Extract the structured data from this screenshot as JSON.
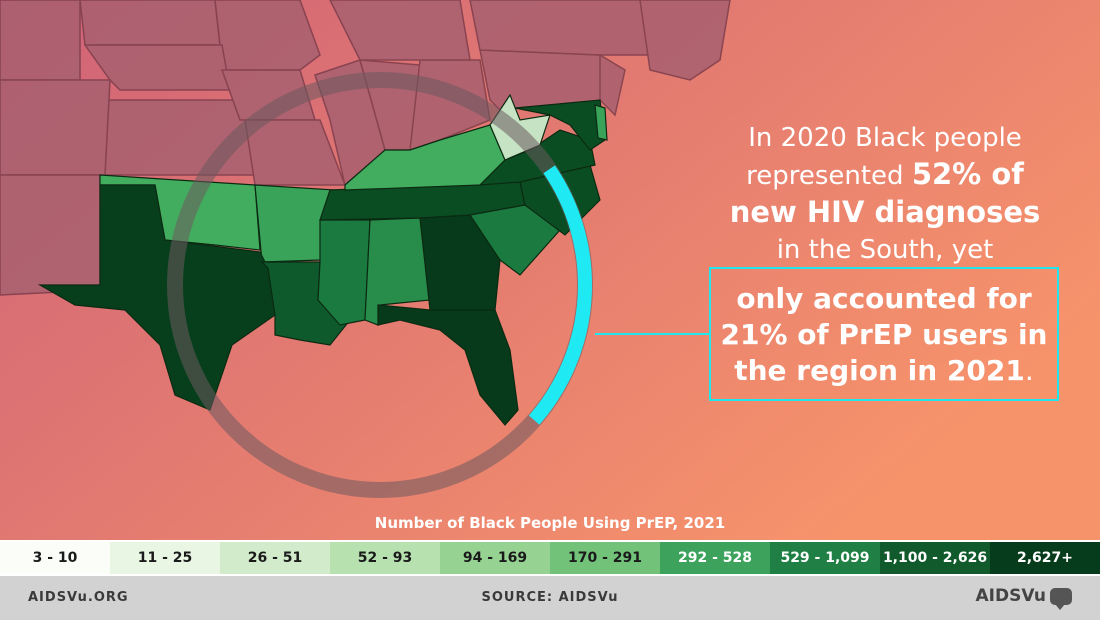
{
  "colors": {
    "bg_left": "#cf6277",
    "bg_right": "#f7936b",
    "accent_cyan": "#1fe9f2",
    "ring": "#6b5a5e",
    "state_dark": "#043a18",
    "state_mid": "#1b6b3a",
    "state_light": "#3fae5e",
    "state_pale": "#c6e3c3",
    "nonsouth": "#a86070"
  },
  "headline": {
    "line1": "In 2020 Black people",
    "line2_prefix": "represented ",
    "line2_bold": "52% of",
    "line3_bold": "new HIV diagnoses",
    "line4": "in the South, yet"
  },
  "callout": {
    "line1": "only accounted for",
    "line2": "21% of PrEP users in",
    "line3": "the region in 2021",
    "period": "."
  },
  "legend": {
    "title": "Number of Black People Using PrEP, 2021",
    "bins": [
      {
        "label": "3 - 10",
        "color": "#fafdf8",
        "text": "#1a1a1a"
      },
      {
        "label": "11 - 25",
        "color": "#e9f6e4",
        "text": "#1a1a1a"
      },
      {
        "label": "26 - 51",
        "color": "#d1ebcb",
        "text": "#1a1a1a"
      },
      {
        "label": "52 - 93",
        "color": "#b7e2b0",
        "text": "#1a1a1a"
      },
      {
        "label": "94 - 169",
        "color": "#96d393",
        "text": "#1a1a1a"
      },
      {
        "label": "170 - 291",
        "color": "#72c27a",
        "text": "#1a1a1a"
      },
      {
        "label": "292 - 528",
        "color": "#3da35c",
        "text": "#ffffff"
      },
      {
        "label": "529 - 1,099",
        "color": "#1f7f44",
        "text": "#ffffff"
      },
      {
        "label": "1,100 - 2,626",
        "color": "#115a2c",
        "text": "#ffffff"
      },
      {
        "label": "2,627+",
        "color": "#063c1b",
        "text": "#ffffff"
      }
    ]
  },
  "footer": {
    "left": "AIDSVu.ORG",
    "source": "SOURCE: AIDSVu",
    "logo": "AIDSVu"
  },
  "ring": {
    "highlight_fraction": 0.21
  }
}
